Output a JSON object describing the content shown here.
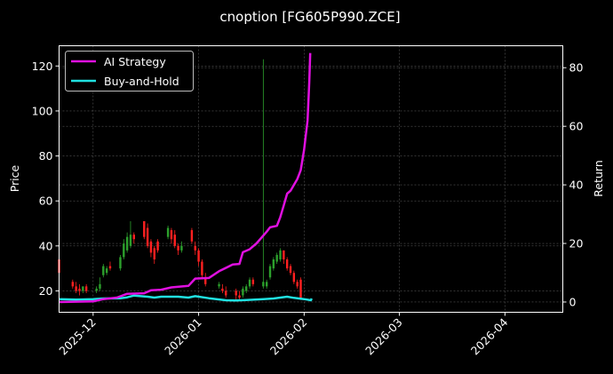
{
  "chart_data": {
    "type": "candlestick+line",
    "title": "cnoption [FG605P990.ZCE]",
    "xlabel": "",
    "ylabel_left": "Price",
    "ylabel_right": "Return",
    "ylim_left": [
      10.5,
      129
    ],
    "ylim_right": [
      -3.5,
      87.5
    ],
    "yticks_left": [
      20,
      40,
      60,
      80,
      100,
      120
    ],
    "yticks_right": [
      0,
      20,
      40,
      60,
      80
    ],
    "xticks": [
      {
        "label": "2025-12",
        "day": 10
      },
      {
        "label": "2026-01",
        "day": 41
      },
      {
        "label": "2026-02",
        "day": 72
      },
      {
        "label": "2026-03",
        "day": 100
      },
      {
        "label": "2026-04",
        "day": 131
      }
    ],
    "xlim_days": [
      0,
      148
    ],
    "x_origin_date": "2025-11-21",
    "grid": true,
    "legend_position": "upper left",
    "colors": {
      "background": "#000000",
      "up": "#2ca02c",
      "down": "#ff2020",
      "ai_strategy": "#e010e0",
      "buy_and_hold": "#20e0e0",
      "grid": "#555555",
      "axes": "#ffffff"
    },
    "legend": [
      {
        "label": "AI Strategy",
        "color": "#e010e0"
      },
      {
        "label": "Buy-and-Hold",
        "color": "#20e0e0"
      }
    ],
    "candles": [
      {
        "d": 0,
        "o": 34,
        "c": 28,
        "h": 36,
        "l": 26,
        "up": false
      },
      {
        "d": 4,
        "o": 24,
        "c": 22,
        "h": 25,
        "l": 21,
        "up": false
      },
      {
        "d": 5,
        "o": 22,
        "c": 20,
        "h": 24,
        "l": 19,
        "up": false
      },
      {
        "d": 6,
        "o": 21,
        "c": 20,
        "h": 23,
        "l": 18,
        "up": false
      },
      {
        "d": 7,
        "o": 20,
        "c": 22,
        "h": 22,
        "l": 19,
        "up": true
      },
      {
        "d": 8,
        "o": 22,
        "c": 20,
        "h": 23,
        "l": 19,
        "up": false
      },
      {
        "d": 11,
        "o": 20,
        "c": 21,
        "h": 22,
        "l": 19,
        "up": true
      },
      {
        "d": 12,
        "o": 21,
        "c": 23,
        "h": 26,
        "l": 20,
        "up": true
      },
      {
        "d": 13,
        "o": 27,
        "c": 31,
        "h": 32,
        "l": 26,
        "up": true
      },
      {
        "d": 14,
        "o": 28,
        "c": 30,
        "h": 31,
        "l": 27,
        "up": true
      },
      {
        "d": 15,
        "o": 31,
        "c": 30,
        "h": 33,
        "l": 29,
        "up": false
      },
      {
        "d": 18,
        "o": 30,
        "c": 35,
        "h": 36,
        "l": 29,
        "up": true
      },
      {
        "d": 19,
        "o": 35,
        "c": 41,
        "h": 43,
        "l": 34,
        "up": true
      },
      {
        "d": 20,
        "o": 38,
        "c": 44,
        "h": 46,
        "l": 37,
        "up": true
      },
      {
        "d": 21,
        "o": 40,
        "c": 45,
        "h": 51,
        "l": 39,
        "up": true
      },
      {
        "d": 22,
        "o": 45,
        "c": 43,
        "h": 46,
        "l": 41,
        "up": false
      },
      {
        "d": 25,
        "o": 51,
        "c": 44,
        "h": 51,
        "l": 43,
        "up": false
      },
      {
        "d": 26,
        "o": 48,
        "c": 40,
        "h": 50,
        "l": 39,
        "up": false
      },
      {
        "d": 27,
        "o": 42,
        "c": 37,
        "h": 43,
        "l": 35,
        "up": false
      },
      {
        "d": 28,
        "o": 39,
        "c": 34,
        "h": 40,
        "l": 32,
        "up": false
      },
      {
        "d": 29,
        "o": 42,
        "c": 38,
        "h": 43,
        "l": 37,
        "up": false
      },
      {
        "d": 32,
        "o": 44,
        "c": 48,
        "h": 49,
        "l": 43,
        "up": true
      },
      {
        "d": 33,
        "o": 47,
        "c": 43,
        "h": 48,
        "l": 41,
        "up": false
      },
      {
        "d": 34,
        "o": 45,
        "c": 40,
        "h": 47,
        "l": 39,
        "up": false
      },
      {
        "d": 35,
        "o": 40,
        "c": 38,
        "h": 41,
        "l": 36,
        "up": false
      },
      {
        "d": 36,
        "o": 38,
        "c": 40,
        "h": 42,
        "l": 37,
        "up": true
      },
      {
        "d": 39,
        "o": 47,
        "c": 42,
        "h": 48,
        "l": 41,
        "up": false
      },
      {
        "d": 40,
        "o": 40,
        "c": 38,
        "h": 42,
        "l": 36,
        "up": false
      },
      {
        "d": 41,
        "o": 38,
        "c": 33,
        "h": 39,
        "l": 31,
        "up": false
      },
      {
        "d": 42,
        "o": 33,
        "c": 27,
        "h": 34,
        "l": 26,
        "up": false
      },
      {
        "d": 43,
        "o": 26,
        "c": 23,
        "h": 28,
        "l": 22,
        "up": false
      },
      {
        "d": 47,
        "o": 22,
        "c": 23,
        "h": 24,
        "l": 21,
        "up": true
      },
      {
        "d": 48,
        "o": 21,
        "c": 20,
        "h": 23,
        "l": 19,
        "up": false
      },
      {
        "d": 49,
        "o": 20,
        "c": 18,
        "h": 22,
        "l": 17,
        "up": false
      },
      {
        "d": 52,
        "o": 20,
        "c": 18,
        "h": 21,
        "l": 16,
        "up": false
      },
      {
        "d": 53,
        "o": 18,
        "c": 17,
        "h": 20,
        "l": 16,
        "up": false
      },
      {
        "d": 54,
        "o": 18,
        "c": 21,
        "h": 22,
        "l": 17,
        "up": true
      },
      {
        "d": 55,
        "o": 20,
        "c": 22,
        "h": 23,
        "l": 19,
        "up": true
      },
      {
        "d": 56,
        "o": 22,
        "c": 25,
        "h": 26,
        "l": 21,
        "up": true
      },
      {
        "d": 57,
        "o": 25,
        "c": 23,
        "h": 26,
        "l": 22,
        "up": false
      },
      {
        "d": 60,
        "o": 22,
        "c": 24,
        "h": 123,
        "l": 21,
        "up": true
      },
      {
        "d": 61,
        "o": 22,
        "c": 24,
        "h": 25,
        "l": 21,
        "up": true
      },
      {
        "d": 62,
        "o": 26,
        "c": 31,
        "h": 32,
        "l": 25,
        "up": true
      },
      {
        "d": 63,
        "o": 30,
        "c": 34,
        "h": 35,
        "l": 29,
        "up": true
      },
      {
        "d": 64,
        "o": 33,
        "c": 36,
        "h": 37,
        "l": 32,
        "up": true
      },
      {
        "d": 65,
        "o": 34,
        "c": 38,
        "h": 39,
        "l": 33,
        "up": true
      },
      {
        "d": 66,
        "o": 38,
        "c": 34,
        "h": 38,
        "l": 32,
        "up": false
      },
      {
        "d": 67,
        "o": 34,
        "c": 30,
        "h": 35,
        "l": 29,
        "up": false
      },
      {
        "d": 68,
        "o": 31,
        "c": 28,
        "h": 32,
        "l": 27,
        "up": false
      },
      {
        "d": 69,
        "o": 28,
        "c": 24,
        "h": 29,
        "l": 23,
        "up": false
      },
      {
        "d": 70,
        "o": 24,
        "c": 22,
        "h": 25,
        "l": 21,
        "up": false
      },
      {
        "d": 71,
        "o": 25,
        "c": 17,
        "h": 26,
        "l": 16,
        "up": false
      }
    ],
    "series": [
      {
        "name": "AI Strategy",
        "axis": "right",
        "points": [
          [
            0,
            0
          ],
          [
            10,
            0.2
          ],
          [
            13,
            1
          ],
          [
            17,
            1.5
          ],
          [
            20,
            2.8
          ],
          [
            25,
            3
          ],
          [
            27,
            4
          ],
          [
            30,
            4.2
          ],
          [
            33,
            5
          ],
          [
            38,
            5.5
          ],
          [
            40,
            8
          ],
          [
            44,
            8.2
          ],
          [
            47,
            10.5
          ],
          [
            51,
            12.8
          ],
          [
            53,
            13
          ],
          [
            54,
            17
          ],
          [
            56,
            18
          ],
          [
            58,
            20
          ],
          [
            61,
            24
          ],
          [
            62,
            25.5
          ],
          [
            64,
            26
          ],
          [
            65,
            29
          ],
          [
            66,
            33
          ],
          [
            67,
            37
          ],
          [
            68,
            38
          ],
          [
            70,
            42
          ],
          [
            71,
            45
          ],
          [
            72,
            52
          ],
          [
            73,
            62
          ],
          [
            73.5,
            75
          ],
          [
            73.8,
            85
          ]
        ]
      },
      {
        "name": "Buy-and-Hold",
        "axis": "right",
        "points": [
          [
            0,
            1
          ],
          [
            5,
            0.8
          ],
          [
            10,
            1
          ],
          [
            13,
            1.2
          ],
          [
            18,
            1.3
          ],
          [
            20,
            1.6
          ],
          [
            22,
            2.2
          ],
          [
            26,
            1.8
          ],
          [
            28,
            1.5
          ],
          [
            30,
            1.8
          ],
          [
            35,
            1.8
          ],
          [
            38,
            1.5
          ],
          [
            40,
            2
          ],
          [
            44,
            1.3
          ],
          [
            49,
            0.6
          ],
          [
            52,
            0.5
          ],
          [
            55,
            0.7
          ],
          [
            60,
            1
          ],
          [
            63,
            1.2
          ],
          [
            65,
            1.5
          ],
          [
            67,
            1.8
          ],
          [
            69,
            1.4
          ],
          [
            72,
            1
          ],
          [
            74,
            0.6
          ],
          [
            74.2,
            1.2
          ]
        ]
      }
    ]
  }
}
